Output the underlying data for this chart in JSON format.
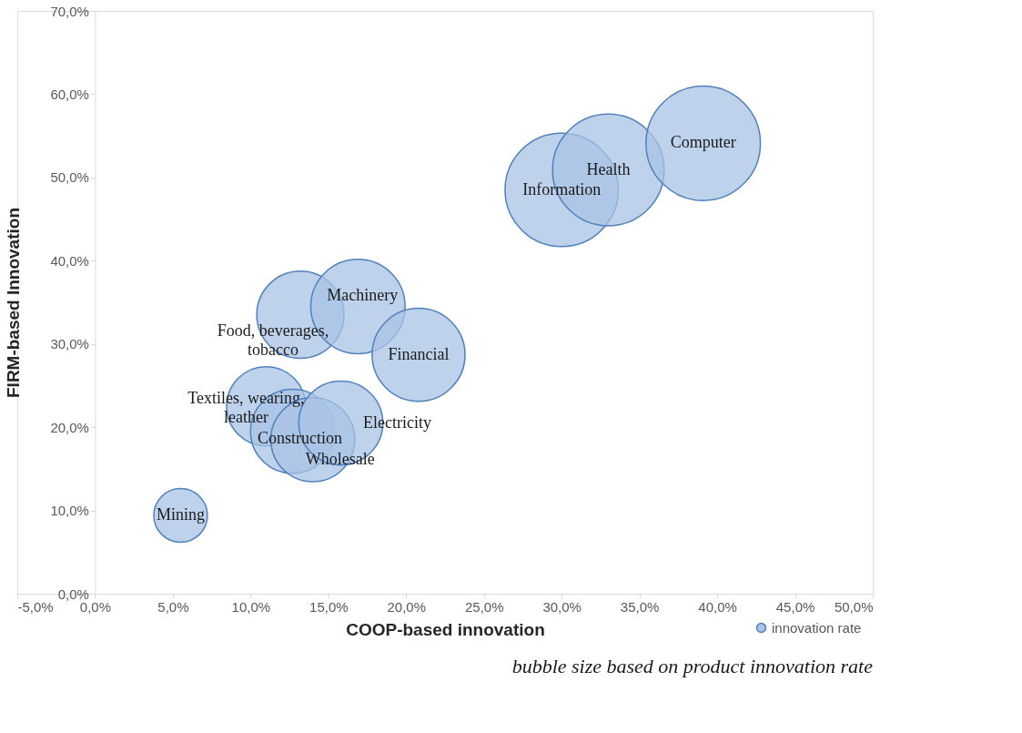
{
  "chart_data": {
    "type": "bubble",
    "xlabel": "COOP-based innovation",
    "ylabel": "FIRM-based Innovation",
    "series": [
      {
        "name": "innovation rate",
        "color": "#a9c3e6",
        "x": [
          5.5,
          11.0,
          12.7,
          14.0,
          15.8,
          13.2,
          16.9,
          20.8,
          30.0,
          33.0,
          39.1
        ],
        "values": [
          9.4,
          22.5,
          19.5,
          18.5,
          20.5,
          33.5,
          34.5,
          28.7,
          48.5,
          50.9,
          54.1
        ],
        "sizes": [
          0.22,
          0.48,
          0.54,
          0.54,
          0.54,
          0.58,
          0.68,
          0.66,
          0.98,
          0.95,
          1.0
        ]
      }
    ],
    "annotations": [
      {
        "text": "Mining",
        "x": 5.5,
        "y": 9.4
      },
      {
        "text": "Textiles, wearing,\nleather",
        "x": 11.0,
        "y": 22.5
      },
      {
        "text": "Construction",
        "x": 12.7,
        "y": 19.5
      },
      {
        "text": "Wholesale",
        "x": 14.0,
        "y": 18.5
      },
      {
        "text": "Electricity",
        "x": 15.8,
        "y": 20.5
      },
      {
        "text": "Food, beverages,\ntobacco",
        "x": 13.2,
        "y": 33.5
      },
      {
        "text": "Machinery",
        "x": 16.9,
        "y": 34.5
      },
      {
        "text": "Financial",
        "x": 20.8,
        "y": 28.7
      },
      {
        "text": "Information",
        "x": 30.0,
        "y": 48.5
      },
      {
        "text": "Health",
        "x": 33.0,
        "y": 50.9
      },
      {
        "text": "Computer",
        "x": 39.1,
        "y": 54.1
      },
      "bubble size based on product innovation rate"
    ],
    "xlim": [
      -5,
      50
    ],
    "xticks": [
      {
        "value": -5,
        "label": "-5,0%"
      },
      {
        "value": 0,
        "label": "0,0%"
      },
      {
        "value": 5,
        "label": "5,0%"
      },
      {
        "value": 10,
        "label": "10,0%"
      },
      {
        "value": 15,
        "label": "15,0%"
      },
      {
        "value": 20,
        "label": "20,0%"
      },
      {
        "value": 25,
        "label": "25,0%"
      },
      {
        "value": 30,
        "label": "30,0%"
      },
      {
        "value": 35,
        "label": "35,0%"
      },
      {
        "value": 40,
        "label": "40,0%"
      },
      {
        "value": 45,
        "label": "45,0%"
      },
      {
        "value": 50,
        "label": "50,0%"
      }
    ],
    "ylim": [
      0,
      70
    ],
    "yticks": [
      {
        "value": 0,
        "label": "0,0%"
      },
      {
        "value": 10,
        "label": "10,0%"
      },
      {
        "value": 20,
        "label": "20,0%"
      },
      {
        "value": 30,
        "label": "30,0%"
      },
      {
        "value": 40,
        "label": "40,0%"
      },
      {
        "value": 50,
        "label": "50,0%"
      },
      {
        "value": 60,
        "label": "60,0%"
      },
      {
        "value": 70,
        "label": "70,0%"
      }
    ],
    "grid": false,
    "legend": "bottom right"
  }
}
